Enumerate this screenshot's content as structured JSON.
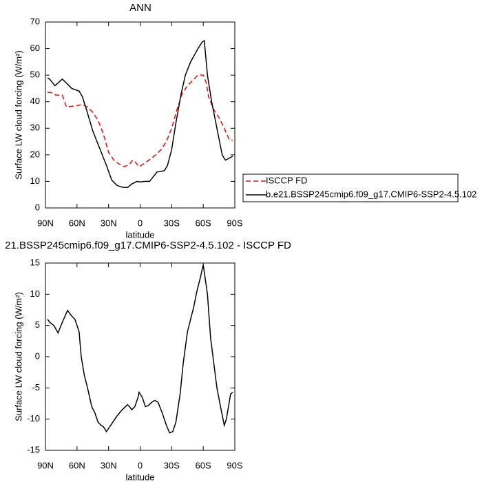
{
  "chart_data": [
    {
      "type": "line",
      "title": "ANN",
      "xlabel": "latitude",
      "ylabel": "Surface LW cloud forcing (W/m²)",
      "xlim": [
        90,
        -90
      ],
      "xticks": [
        {
          "value": 90,
          "label": "90N"
        },
        {
          "value": 60,
          "label": "60N"
        },
        {
          "value": 30,
          "label": "30N"
        },
        0,
        {
          "value": -30,
          "label": "30S"
        },
        {
          "value": -60,
          "label": "60S"
        },
        {
          "value": -90,
          "label": "90S"
        }
      ],
      "ylim": [
        0,
        70
      ],
      "yticks": [
        0,
        10,
        20,
        30,
        40,
        50,
        60,
        70
      ],
      "legend": "outside-right",
      "series": [
        {
          "name": "ISCCP FD",
          "color": "#ff0000",
          "style": "dashed",
          "x": [
            88,
            85,
            80,
            74,
            70,
            60,
            55,
            50,
            45,
            40,
            35,
            30,
            25,
            20,
            15,
            10,
            7,
            4,
            1,
            -5,
            -10,
            -15,
            -20,
            -25,
            -30,
            -35,
            -40,
            -45,
            -50,
            -55,
            -60,
            -63,
            -65,
            -70,
            -75,
            -80,
            -85,
            -88
          ],
          "values": [
            43.5,
            43.5,
            42.5,
            42.5,
            38,
            38.5,
            39,
            38,
            36,
            33,
            28,
            21,
            18,
            16.5,
            15.5,
            16.5,
            18,
            17,
            15.5,
            17,
            18.5,
            20,
            22,
            25,
            30,
            37,
            43,
            46,
            48,
            50,
            50,
            47,
            42,
            37,
            34,
            30,
            25.5,
            25.5
          ]
        },
        {
          "name": "b.e21.BSSP245cmip6.f09_g17.CMIP6-SSP2-4.5.102",
          "color": "#000000",
          "style": "solid",
          "x": [
            88,
            86,
            81,
            74,
            70,
            65,
            58,
            55,
            51,
            45,
            42,
            37,
            32,
            27,
            22,
            17,
            12,
            8,
            3,
            0,
            -5,
            -9,
            -13,
            -16,
            -23,
            -26,
            -30,
            -34,
            -39,
            -43,
            -48,
            -55,
            -59,
            -61,
            -64,
            -68,
            -73,
            -78,
            -81,
            -86,
            -88
          ],
          "values": [
            49,
            48.5,
            46,
            48.5,
            47,
            45,
            44,
            42,
            37,
            29,
            26,
            21,
            16,
            10.5,
            8.5,
            7.8,
            7.7,
            9,
            10,
            9.8,
            10,
            10,
            12,
            13.5,
            14,
            16,
            22,
            32,
            43,
            50,
            55,
            60,
            62.5,
            63,
            50,
            40,
            30,
            20,
            18,
            19,
            19.5
          ]
        }
      ]
    },
    {
      "type": "line",
      "title": "21.BSSP245cmip6.f09_g17.CMIP6-SSP2-4.5.102 - ISCCP FD",
      "xlabel": "latitude",
      "ylabel": "Surface LW cloud forcing (W/m²)",
      "xlim": [
        90,
        -90
      ],
      "xticks": [
        {
          "value": 90,
          "label": "90N"
        },
        {
          "value": 60,
          "label": "60N"
        },
        {
          "value": 30,
          "label": "30N"
        },
        0,
        {
          "value": -30,
          "label": "30S"
        },
        {
          "value": -60,
          "label": "60S"
        },
        {
          "value": -90,
          "label": "90S"
        }
      ],
      "ylim": [
        -15,
        15
      ],
      "yticks": [
        -15,
        -10,
        -5,
        0,
        5,
        10,
        15
      ],
      "series": [
        {
          "color": "#000000",
          "style": "solid",
          "x": [
            88,
            86,
            82,
            78,
            74,
            69,
            65,
            62,
            58,
            56,
            53,
            50,
            46,
            43,
            40,
            37,
            35,
            32,
            28,
            24,
            22,
            17,
            12,
            10,
            8,
            5,
            2,
            1,
            -2,
            -5,
            -8,
            -11,
            -14,
            -17,
            -21,
            -25,
            -28,
            -31,
            -34,
            -38,
            -41,
            -45,
            -51,
            -54,
            -57,
            -60,
            -64,
            -67,
            -73,
            -77,
            -80,
            -82,
            -86,
            -88
          ],
          "values": [
            6,
            5.5,
            5,
            3.8,
            5.5,
            7.4,
            6.5,
            6,
            4,
            0,
            -3,
            -5,
            -8,
            -9,
            -10.5,
            -11,
            -11.2,
            -12,
            -11,
            -10,
            -9.5,
            -8.5,
            -7.7,
            -8,
            -8.5,
            -8,
            -6.5,
            -5.7,
            -6.5,
            -8,
            -7.8,
            -7.3,
            -7,
            -7.3,
            -9,
            -11,
            -12.2,
            -12,
            -10.5,
            -6,
            -1,
            4,
            8,
            10.5,
            12.5,
            14.7,
            10,
            3,
            -5,
            -8.5,
            -11,
            -10,
            -6,
            -5.7
          ]
        }
      ]
    }
  ]
}
